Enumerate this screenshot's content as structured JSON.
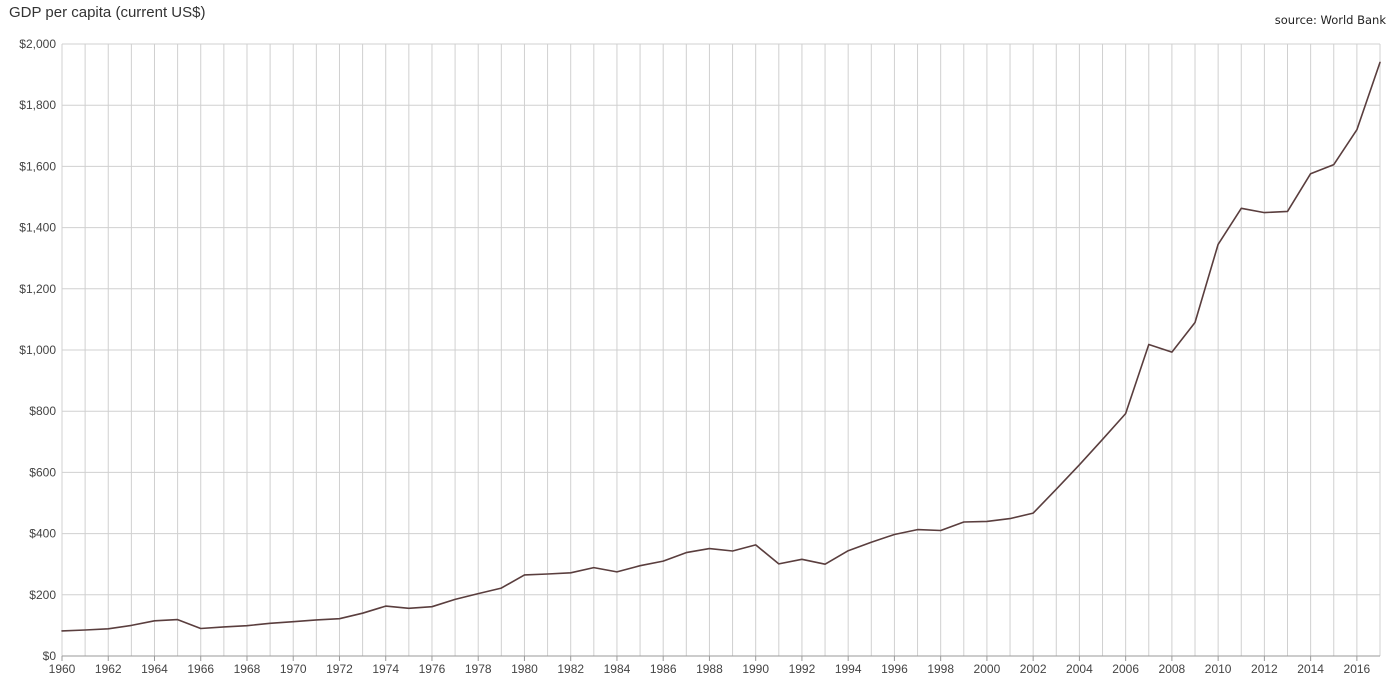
{
  "chart_data": {
    "type": "line",
    "title": "GDP per capita (current US$)",
    "source": "source: World Bank",
    "xlabel": "",
    "ylabel": "",
    "xlim": [
      1960,
      2017
    ],
    "ylim": [
      0,
      2000
    ],
    "grid": true,
    "legend": false,
    "x_ticks": [
      1960,
      1962,
      1964,
      1966,
      1968,
      1970,
      1972,
      1974,
      1976,
      1978,
      1980,
      1982,
      1984,
      1986,
      1988,
      1990,
      1992,
      1994,
      1996,
      1998,
      2000,
      2002,
      2004,
      2006,
      2008,
      2010,
      2012,
      2014,
      2016
    ],
    "y_ticks": [
      0,
      200,
      400,
      600,
      800,
      1000,
      1200,
      1400,
      1600,
      1800,
      2000
    ],
    "y_tick_labels": [
      "$0",
      "$200",
      "$400",
      "$600",
      "$800",
      "$1,000",
      "$1,200",
      "$1,400",
      "$1,600",
      "$1,800",
      "$2,000"
    ],
    "line_color": "#5a3e3e",
    "grid_color": "#d0d0d0",
    "series": [
      {
        "name": "",
        "x": [
          1960,
          1961,
          1962,
          1963,
          1964,
          1965,
          1966,
          1967,
          1968,
          1969,
          1970,
          1971,
          1972,
          1973,
          1974,
          1975,
          1976,
          1977,
          1978,
          1979,
          1980,
          1981,
          1982,
          1983,
          1984,
          1985,
          1986,
          1987,
          1988,
          1989,
          1990,
          1991,
          1992,
          1993,
          1994,
          1995,
          1996,
          1997,
          1998,
          1999,
          2000,
          2001,
          2002,
          2003,
          2004,
          2005,
          2006,
          2007,
          2008,
          2009,
          2010,
          2011,
          2012,
          2013,
          2014,
          2015,
          2016,
          2017
        ],
        "values": [
          82,
          85,
          89,
          100,
          115,
          119,
          90,
          95,
          99,
          107,
          112,
          118,
          122,
          140,
          163,
          156,
          161,
          185,
          204,
          222,
          265,
          268,
          272,
          289,
          275,
          295,
          310,
          338,
          351,
          343,
          363,
          301,
          316,
          300,
          344,
          372,
          397,
          413,
          410,
          438,
          440,
          449,
          467,
          545,
          625,
          708,
          792,
          1018,
          993,
          1090,
          1345,
          1463,
          1449,
          1453,
          1576,
          1606,
          1720,
          1940
        ]
      }
    ]
  }
}
